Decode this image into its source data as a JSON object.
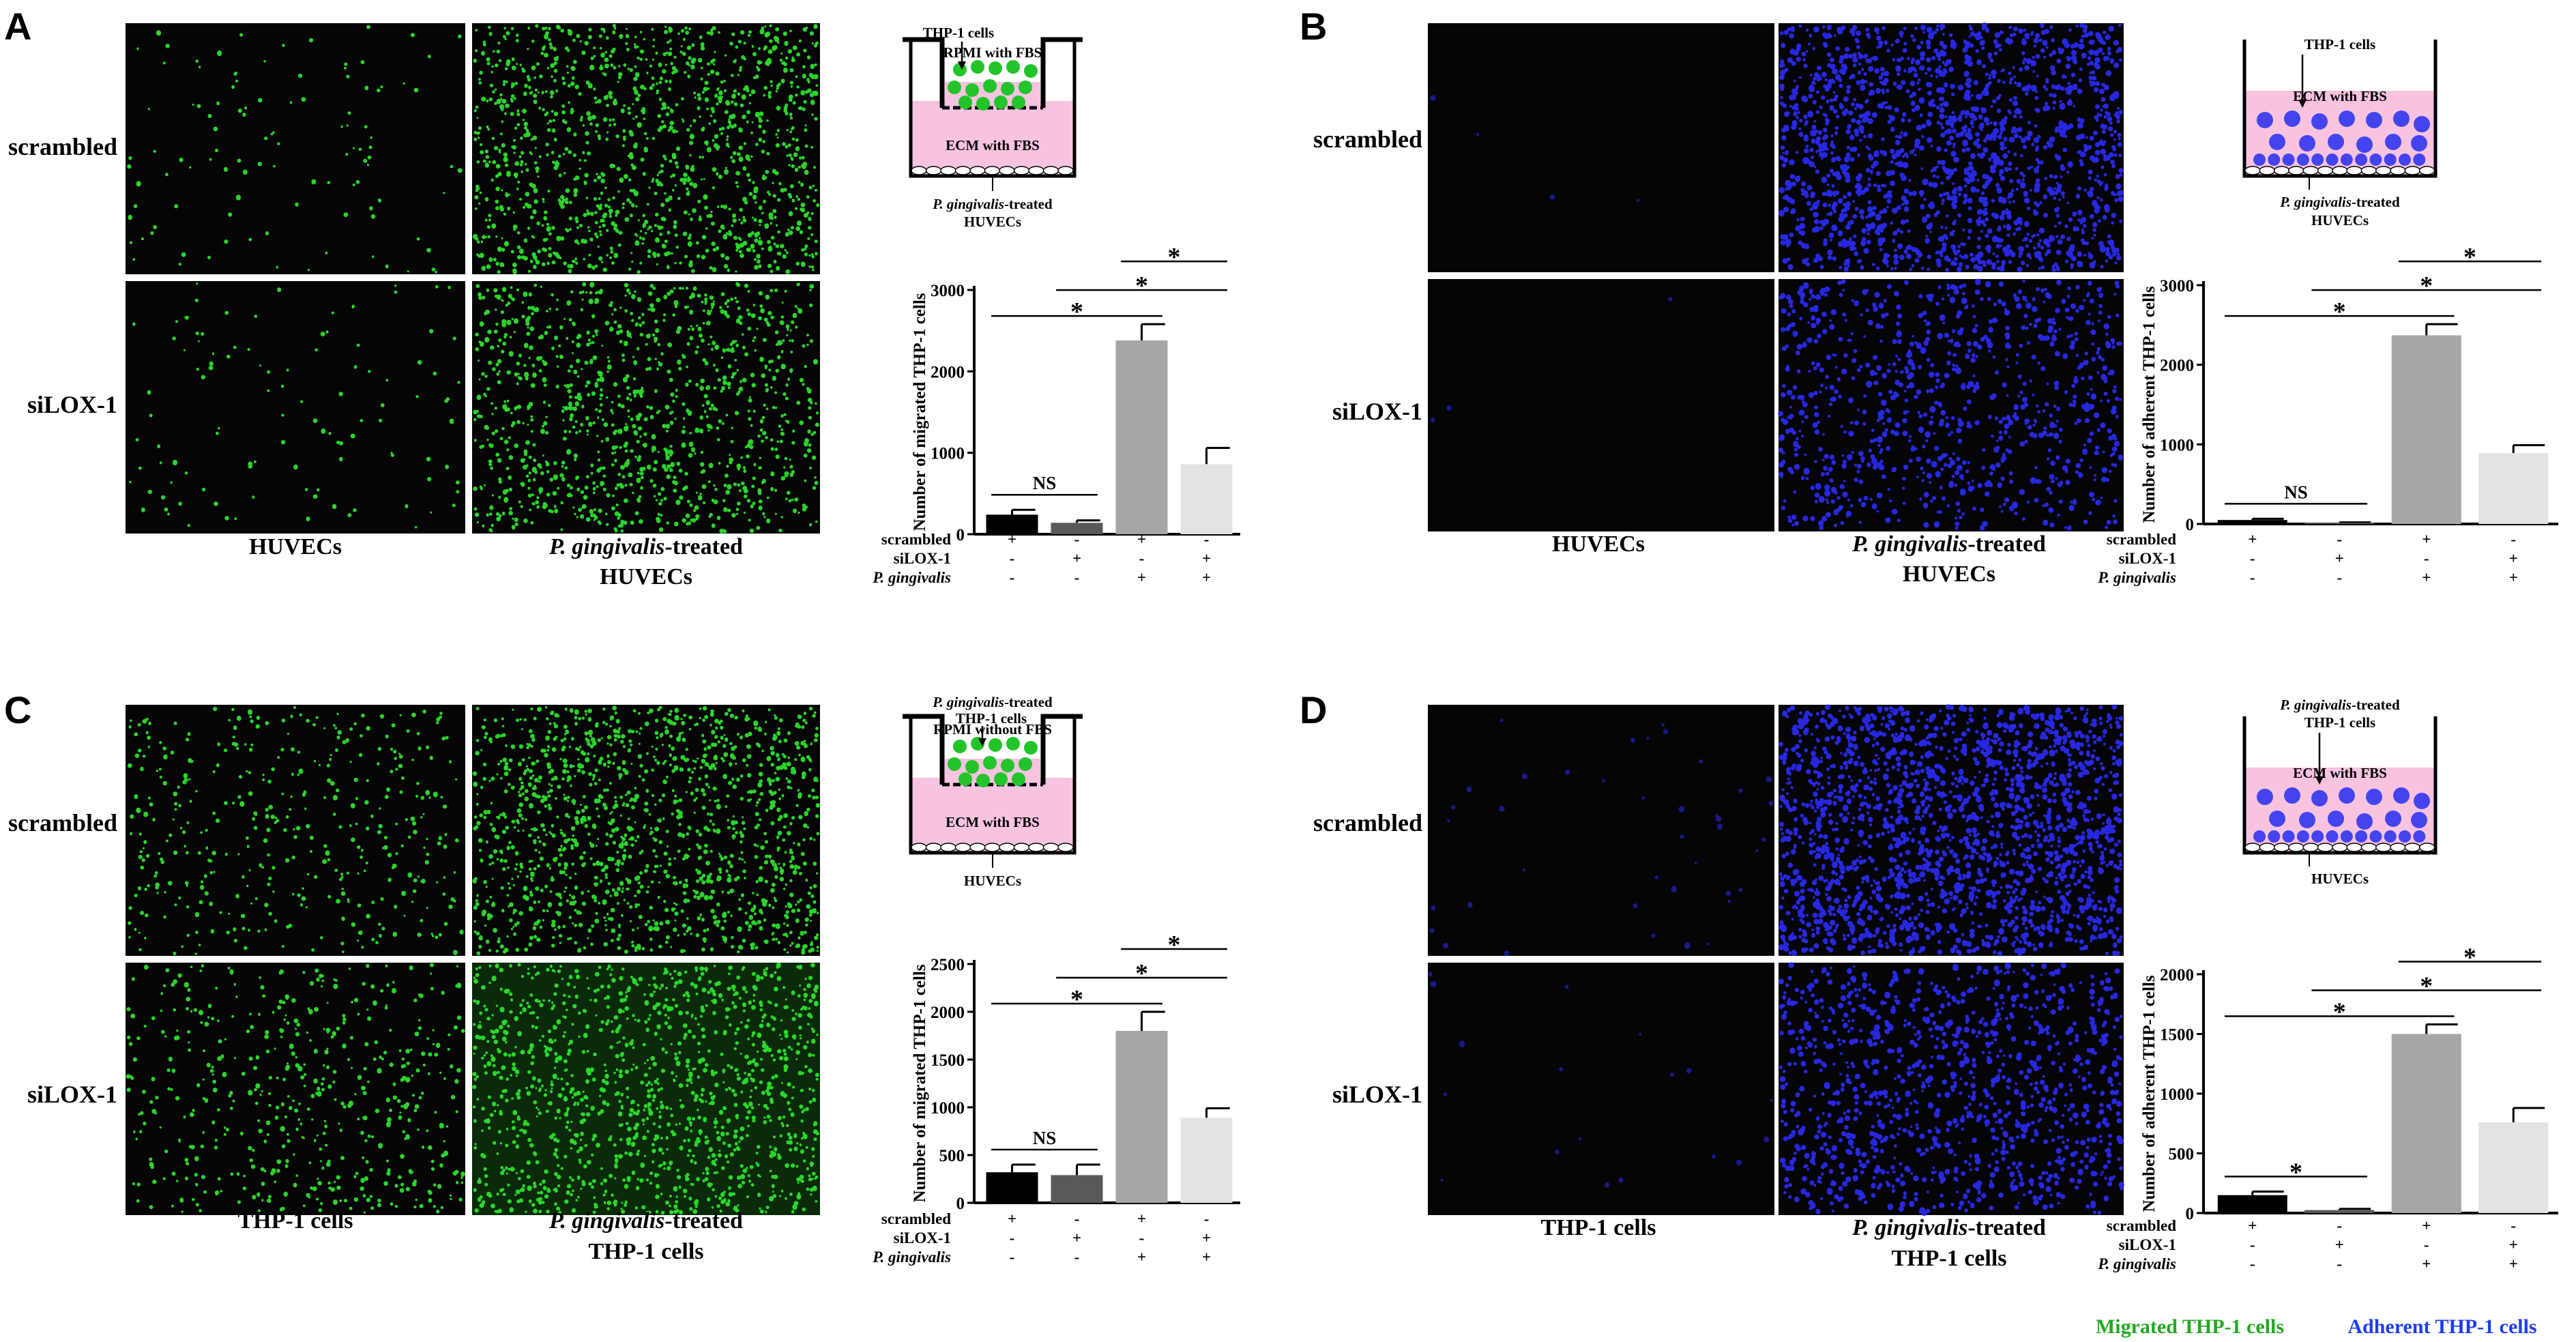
{
  "figure": {
    "legend": {
      "migrated": "Migrated THP-1 cells",
      "adherent": "Adherent THP-1 cells",
      "migrated_color": "#22a822",
      "adherent_color": "#1e3cf0"
    },
    "panels": [
      {
        "letter": "A",
        "cell_color": "#2ee62e",
        "row_labels": [
          "scrambled",
          "siLOX-1"
        ],
        "col1_label": "HUVECs",
        "col2_label_italic": "P. gingivalis",
        "col2_label_rest": "-treated",
        "col2_label_line2": "HUVECs",
        "schematic": {
          "type": "transwell",
          "top_label_1": "THP-1 cells",
          "top_label_2": "",
          "upper_label": "RPMI with FBS",
          "lower_label": "ECM with FBS",
          "bottom_label_italic": "P. gingivalis",
          "bottom_label_rest": "-treated",
          "bottom_label_2": "HUVECs"
        }
      },
      {
        "letter": "B",
        "cell_color": "#2a2af5",
        "row_labels": [
          "scrambled",
          "siLOX-1"
        ],
        "col1_label": "HUVECs",
        "col2_label_italic": "P. gingivalis",
        "col2_label_rest": "-treated",
        "col2_label_line2": "HUVECs",
        "schematic": {
          "type": "adhesion",
          "top_label_1": "THP-1 cells",
          "top_label_2": "",
          "upper_label": "",
          "lower_label": "ECM with FBS",
          "bottom_label_italic": "P. gingivalis",
          "bottom_label_rest": "-treated",
          "bottom_label_2": "HUVECs"
        }
      },
      {
        "letter": "C",
        "cell_color": "#2ee62e",
        "row_labels": [
          "scrambled",
          "siLOX-1"
        ],
        "col1_label": "THP-1 cells",
        "col2_label_italic": "P. gingivalis",
        "col2_label_rest": "-treated",
        "col2_label_line2": "THP-1 cells",
        "schematic": {
          "type": "transwell",
          "top_label_1_italic": "P. gingivalis",
          "top_label_1": "-treated",
          "top_label_2": "THP-1 cells",
          "upper_label": "RPMI without FBS",
          "lower_label": "ECM with FBS",
          "bottom_label_italic": "",
          "bottom_label_rest": "HUVECs",
          "bottom_label_2": ""
        }
      },
      {
        "letter": "D",
        "cell_color": "#2a2af5",
        "row_labels": [
          "scrambled",
          "siLOX-1"
        ],
        "col1_label": "THP-1 cells",
        "col2_label_italic": "P. gingivalis",
        "col2_label_rest": "-treated",
        "col2_label_line2": "THP-1 cells",
        "schematic": {
          "type": "adhesion",
          "top_label_1_italic": "P. gingivalis",
          "top_label_1": "-treated",
          "top_label_2": "THP-1 cells",
          "upper_label": "",
          "lower_label": "ECM with FBS",
          "bottom_label_italic": "",
          "bottom_label_rest": "HUVECs",
          "bottom_label_2": ""
        }
      }
    ]
  },
  "chart_data": [
    {
      "type": "bar",
      "panel": "A",
      "ylabel": "Number of migrated THP-1 cells",
      "ylim": [
        0,
        3000
      ],
      "yticks": [
        0,
        1000,
        2000,
        3000
      ],
      "values": [
        240,
        140,
        2380,
        860
      ],
      "errors": [
        60,
        30,
        200,
        200
      ],
      "bar_colors": [
        "#000000",
        "#595959",
        "#a6a6a6",
        "#e3e3e3"
      ],
      "condition_rows": [
        {
          "name": "scrambled",
          "italic": false,
          "signs": [
            "+",
            "-",
            "+",
            "-"
          ]
        },
        {
          "name": "siLOX-1",
          "italic": false,
          "signs": [
            "-",
            "+",
            "-",
            "+"
          ]
        },
        {
          "name": "P. gingivalis",
          "italic": true,
          "signs": [
            "-",
            "-",
            "+",
            "+"
          ]
        }
      ],
      "comparisons": [
        {
          "pair": [
            0,
            1
          ],
          "label": "NS"
        },
        {
          "pair": [
            0,
            2
          ],
          "label": "*"
        },
        {
          "pair": [
            1,
            3
          ],
          "label": "*"
        },
        {
          "pair": [
            2,
            3
          ],
          "label": "*"
        }
      ]
    },
    {
      "type": "bar",
      "panel": "B",
      "ylabel": "Number of adherent THP-1 cells",
      "ylim": [
        0,
        3000
      ],
      "yticks": [
        0,
        1000,
        2000,
        3000
      ],
      "values": [
        50,
        15,
        2370,
        890
      ],
      "errors": [
        15,
        5,
        140,
        100
      ],
      "bar_colors": [
        "#000000",
        "#595959",
        "#a6a6a6",
        "#e3e3e3"
      ],
      "condition_rows": [
        {
          "name": "scrambled",
          "italic": false,
          "signs": [
            "+",
            "-",
            "+",
            "-"
          ]
        },
        {
          "name": "siLOX-1",
          "italic": false,
          "signs": [
            "-",
            "+",
            "-",
            "+"
          ]
        },
        {
          "name": "P. gingivalis",
          "italic": true,
          "signs": [
            "-",
            "-",
            "+",
            "+"
          ]
        }
      ],
      "comparisons": [
        {
          "pair": [
            0,
            1
          ],
          "label": "NS"
        },
        {
          "pair": [
            0,
            2
          ],
          "label": "*"
        },
        {
          "pair": [
            1,
            3
          ],
          "label": "*"
        },
        {
          "pair": [
            2,
            3
          ],
          "label": "*"
        }
      ]
    },
    {
      "type": "bar",
      "panel": "C",
      "ylabel": "Number of migrated THP-1 cells",
      "ylim": [
        0,
        2500
      ],
      "yticks": [
        0,
        500,
        1000,
        1500,
        2000,
        2500
      ],
      "values": [
        320,
        290,
        1800,
        890
      ],
      "errors": [
        80,
        110,
        200,
        100
      ],
      "bar_colors": [
        "#000000",
        "#595959",
        "#a6a6a6",
        "#e3e3e3"
      ],
      "condition_rows": [
        {
          "name": "scrambled",
          "italic": false,
          "signs": [
            "+",
            "-",
            "+",
            "-"
          ]
        },
        {
          "name": "siLOX-1",
          "italic": false,
          "signs": [
            "-",
            "+",
            "-",
            "+"
          ]
        },
        {
          "name": "P. gingivalis",
          "italic": true,
          "signs": [
            "-",
            "-",
            "+",
            "+"
          ]
        }
      ],
      "comparisons": [
        {
          "pair": [
            0,
            1
          ],
          "label": "NS"
        },
        {
          "pair": [
            0,
            2
          ],
          "label": "*"
        },
        {
          "pair": [
            1,
            3
          ],
          "label": "*"
        },
        {
          "pair": [
            2,
            3
          ],
          "label": "*"
        }
      ]
    },
    {
      "type": "bar",
      "panel": "D",
      "ylabel": "Number of adherent THP-1 cells",
      "ylim": [
        0,
        2000
      ],
      "yticks": [
        0,
        500,
        1000,
        1500,
        2000
      ],
      "values": [
        150,
        25,
        1500,
        760
      ],
      "errors": [
        30,
        10,
        80,
        120
      ],
      "bar_colors": [
        "#000000",
        "#595959",
        "#a6a6a6",
        "#e3e3e3"
      ],
      "condition_rows": [
        {
          "name": "scrambled",
          "italic": false,
          "signs": [
            "+",
            "-",
            "+",
            "-"
          ]
        },
        {
          "name": "siLOX-1",
          "italic": false,
          "signs": [
            "-",
            "+",
            "-",
            "+"
          ]
        },
        {
          "name": "P. gingivalis",
          "italic": true,
          "signs": [
            "-",
            "-",
            "+",
            "+"
          ]
        }
      ],
      "comparisons": [
        {
          "pair": [
            0,
            1
          ],
          "label": "*"
        },
        {
          "pair": [
            0,
            2
          ],
          "label": "*"
        },
        {
          "pair": [
            1,
            3
          ],
          "label": "*"
        },
        {
          "pair": [
            2,
            3
          ],
          "label": "*"
        }
      ]
    }
  ]
}
